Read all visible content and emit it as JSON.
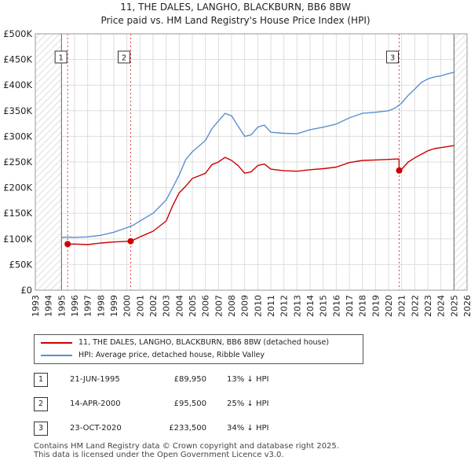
{
  "title_line1": "11, THE DALES, LANGHO, BLACKBURN, BB6 8BW",
  "title_line2": "Price paid vs. HM Land Registry's House Price Index (HPI)",
  "chart_data": {
    "type": "line",
    "ylim": [
      0,
      500000
    ],
    "xlim": [
      1993,
      2026
    ],
    "y_ticks": [
      0,
      50000,
      100000,
      150000,
      200000,
      250000,
      300000,
      350000,
      400000,
      450000,
      500000
    ],
    "y_tick_labels": [
      "£0",
      "£50K",
      "£100K",
      "£150K",
      "£200K",
      "£250K",
      "£300K",
      "£350K",
      "£400K",
      "£450K",
      "£500K"
    ],
    "x_ticks": [
      1993,
      1994,
      1995,
      1996,
      1997,
      1998,
      1999,
      2000,
      2001,
      2002,
      2003,
      2004,
      2005,
      2006,
      2007,
      2008,
      2009,
      2010,
      2011,
      2012,
      2013,
      2014,
      2015,
      2016,
      2017,
      2018,
      2019,
      2020,
      2021,
      2022,
      2023,
      2024,
      2025,
      2026
    ],
    "hatched_ranges": [
      [
        1993,
        1995.0
      ],
      [
        2025.0,
        2026
      ]
    ],
    "series": [
      {
        "name": "11, THE DALES, LANGHO, BLACKBURN, BB6 8BW (detached house)",
        "color": "#cc0000",
        "x": [
          1995.47,
          1996,
          1997,
          1998,
          1999,
          2000.29,
          2001,
          2002,
          2003,
          2003.5,
          2004,
          2004.5,
          2005,
          2006,
          2006.5,
          2007,
          2007.5,
          2008,
          2008.5,
          2009,
          2009.5,
          2010,
          2010.5,
          2011,
          2012,
          2013,
          2014,
          2015,
          2016,
          2017,
          2018,
          2019,
          2020,
          2020.8,
          2020.81,
          2021,
          2021.5,
          2022,
          2022.5,
          2023,
          2023.5,
          2024,
          2024.5,
          2025
        ],
        "y": [
          89950,
          90000,
          89000,
          92000,
          94000,
          95500,
          104000,
          115000,
          135000,
          165000,
          190000,
          203000,
          218000,
          228000,
          245000,
          250000,
          259000,
          253000,
          243000,
          228000,
          231000,
          243000,
          246000,
          236000,
          233000,
          232000,
          235000,
          237000,
          240000,
          249000,
          253000,
          254000,
          255000,
          256000,
          233500,
          236000,
          250000,
          258000,
          265000,
          272000,
          276000,
          278000,
          280000,
          282000
        ]
      },
      {
        "name": "HPI: Average price, detached house, Ribble Valley",
        "color": "#5b8fd0",
        "x": [
          1995,
          1995.5,
          1996,
          1997,
          1998,
          1999,
          2000,
          2000.5,
          2001,
          2002,
          2003,
          2003.5,
          2004,
          2004.5,
          2005,
          2006,
          2006.5,
          2007,
          2007.5,
          2008,
          2008.5,
          2009,
          2009.5,
          2010,
          2010.5,
          2011,
          2012,
          2013,
          2014,
          2015,
          2016,
          2017,
          2018,
          2019,
          2020,
          2020.5,
          2021,
          2021.5,
          2022,
          2022.5,
          2023,
          2023.5,
          2024,
          2024.5,
          2025
        ],
        "y": [
          103000,
          103500,
          103000,
          104000,
          107000,
          113000,
          122000,
          127000,
          135000,
          150000,
          176000,
          200000,
          225000,
          255000,
          270000,
          292000,
          315000,
          330000,
          345000,
          340000,
          320000,
          300000,
          303000,
          318000,
          322000,
          308000,
          306000,
          305000,
          313000,
          318000,
          324000,
          336000,
          345000,
          347000,
          350000,
          355000,
          365000,
          380000,
          392000,
          405000,
          412000,
          416000,
          418000,
          422000,
          425000
        ]
      }
    ],
    "markers": [
      {
        "label": "1",
        "x": 1995.47,
        "y": 89950
      },
      {
        "label": "2",
        "x": 2000.29,
        "y": 95500
      },
      {
        "label": "3",
        "x": 2020.81,
        "y": 233500
      }
    ]
  },
  "legend": {
    "price_paid": "11, THE DALES, LANGHO, BLACKBURN, BB6 8BW (detached house)",
    "hpi": "HPI: Average price, detached house, Ribble Valley"
  },
  "transactions": [
    {
      "num": "1",
      "date": "21-JUN-1995",
      "price": "£89,950",
      "hpi": "13% ↓ HPI"
    },
    {
      "num": "2",
      "date": "14-APR-2000",
      "price": "£95,500",
      "hpi": "25% ↓ HPI"
    },
    {
      "num": "3",
      "date": "23-OCT-2020",
      "price": "£233,500",
      "hpi": "34% ↓ HPI"
    }
  ],
  "footer_line1": "Contains HM Land Registry data © Crown copyright and database right 2025.",
  "footer_line2": "This data is licensed under the Open Government Licence v3.0."
}
